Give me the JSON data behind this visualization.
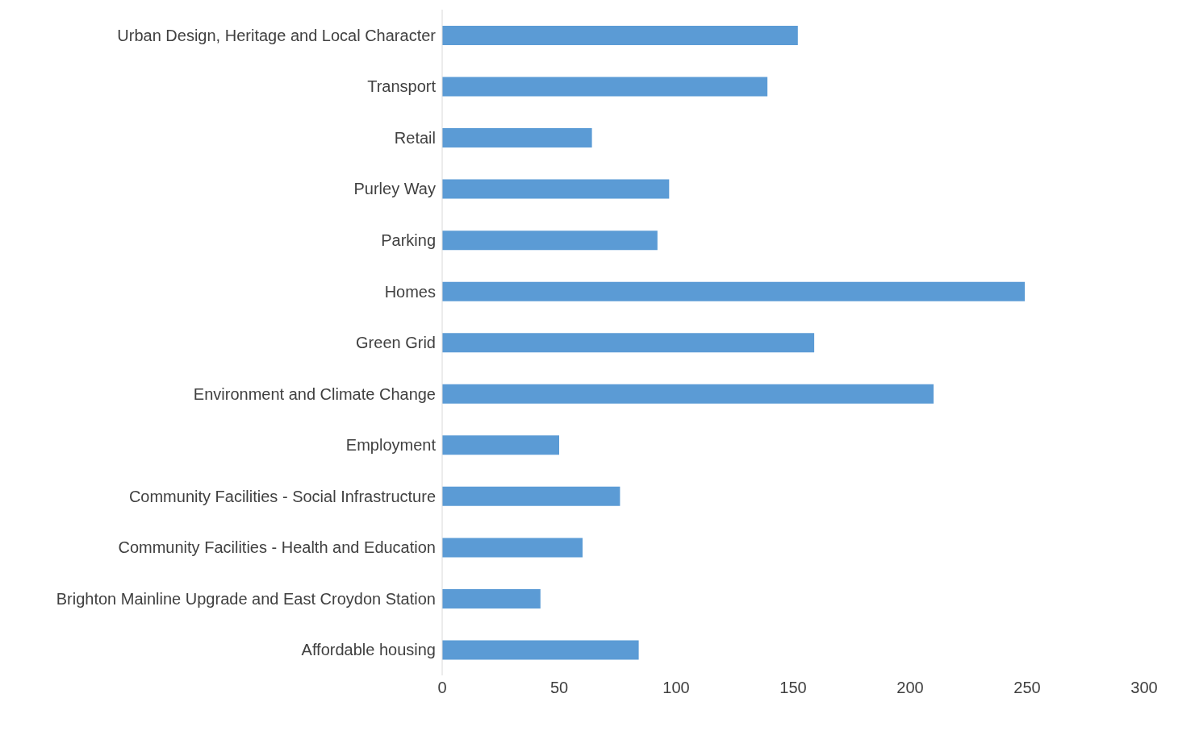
{
  "chart_data": {
    "type": "bar",
    "orientation": "horizontal",
    "categories": [
      "Urban Design, Heritage and Local Character",
      "Transport",
      "Retail",
      "Purley Way",
      "Parking",
      "Homes",
      "Green Grid",
      "Environment and Climate Change",
      "Employment",
      "Community Facilities - Social Infrastructure",
      "Community Facilities - Health and Education",
      "Brighton Mainline Upgrade and East Croydon Station",
      "Affordable housing"
    ],
    "values": [
      152,
      139,
      64,
      97,
      92,
      249,
      159,
      210,
      50,
      76,
      60,
      42,
      84
    ],
    "color": "#5b9bd5",
    "xlim": [
      0,
      300
    ],
    "xticks": [
      0,
      50,
      100,
      150,
      200,
      250,
      300
    ],
    "grid": false
  }
}
